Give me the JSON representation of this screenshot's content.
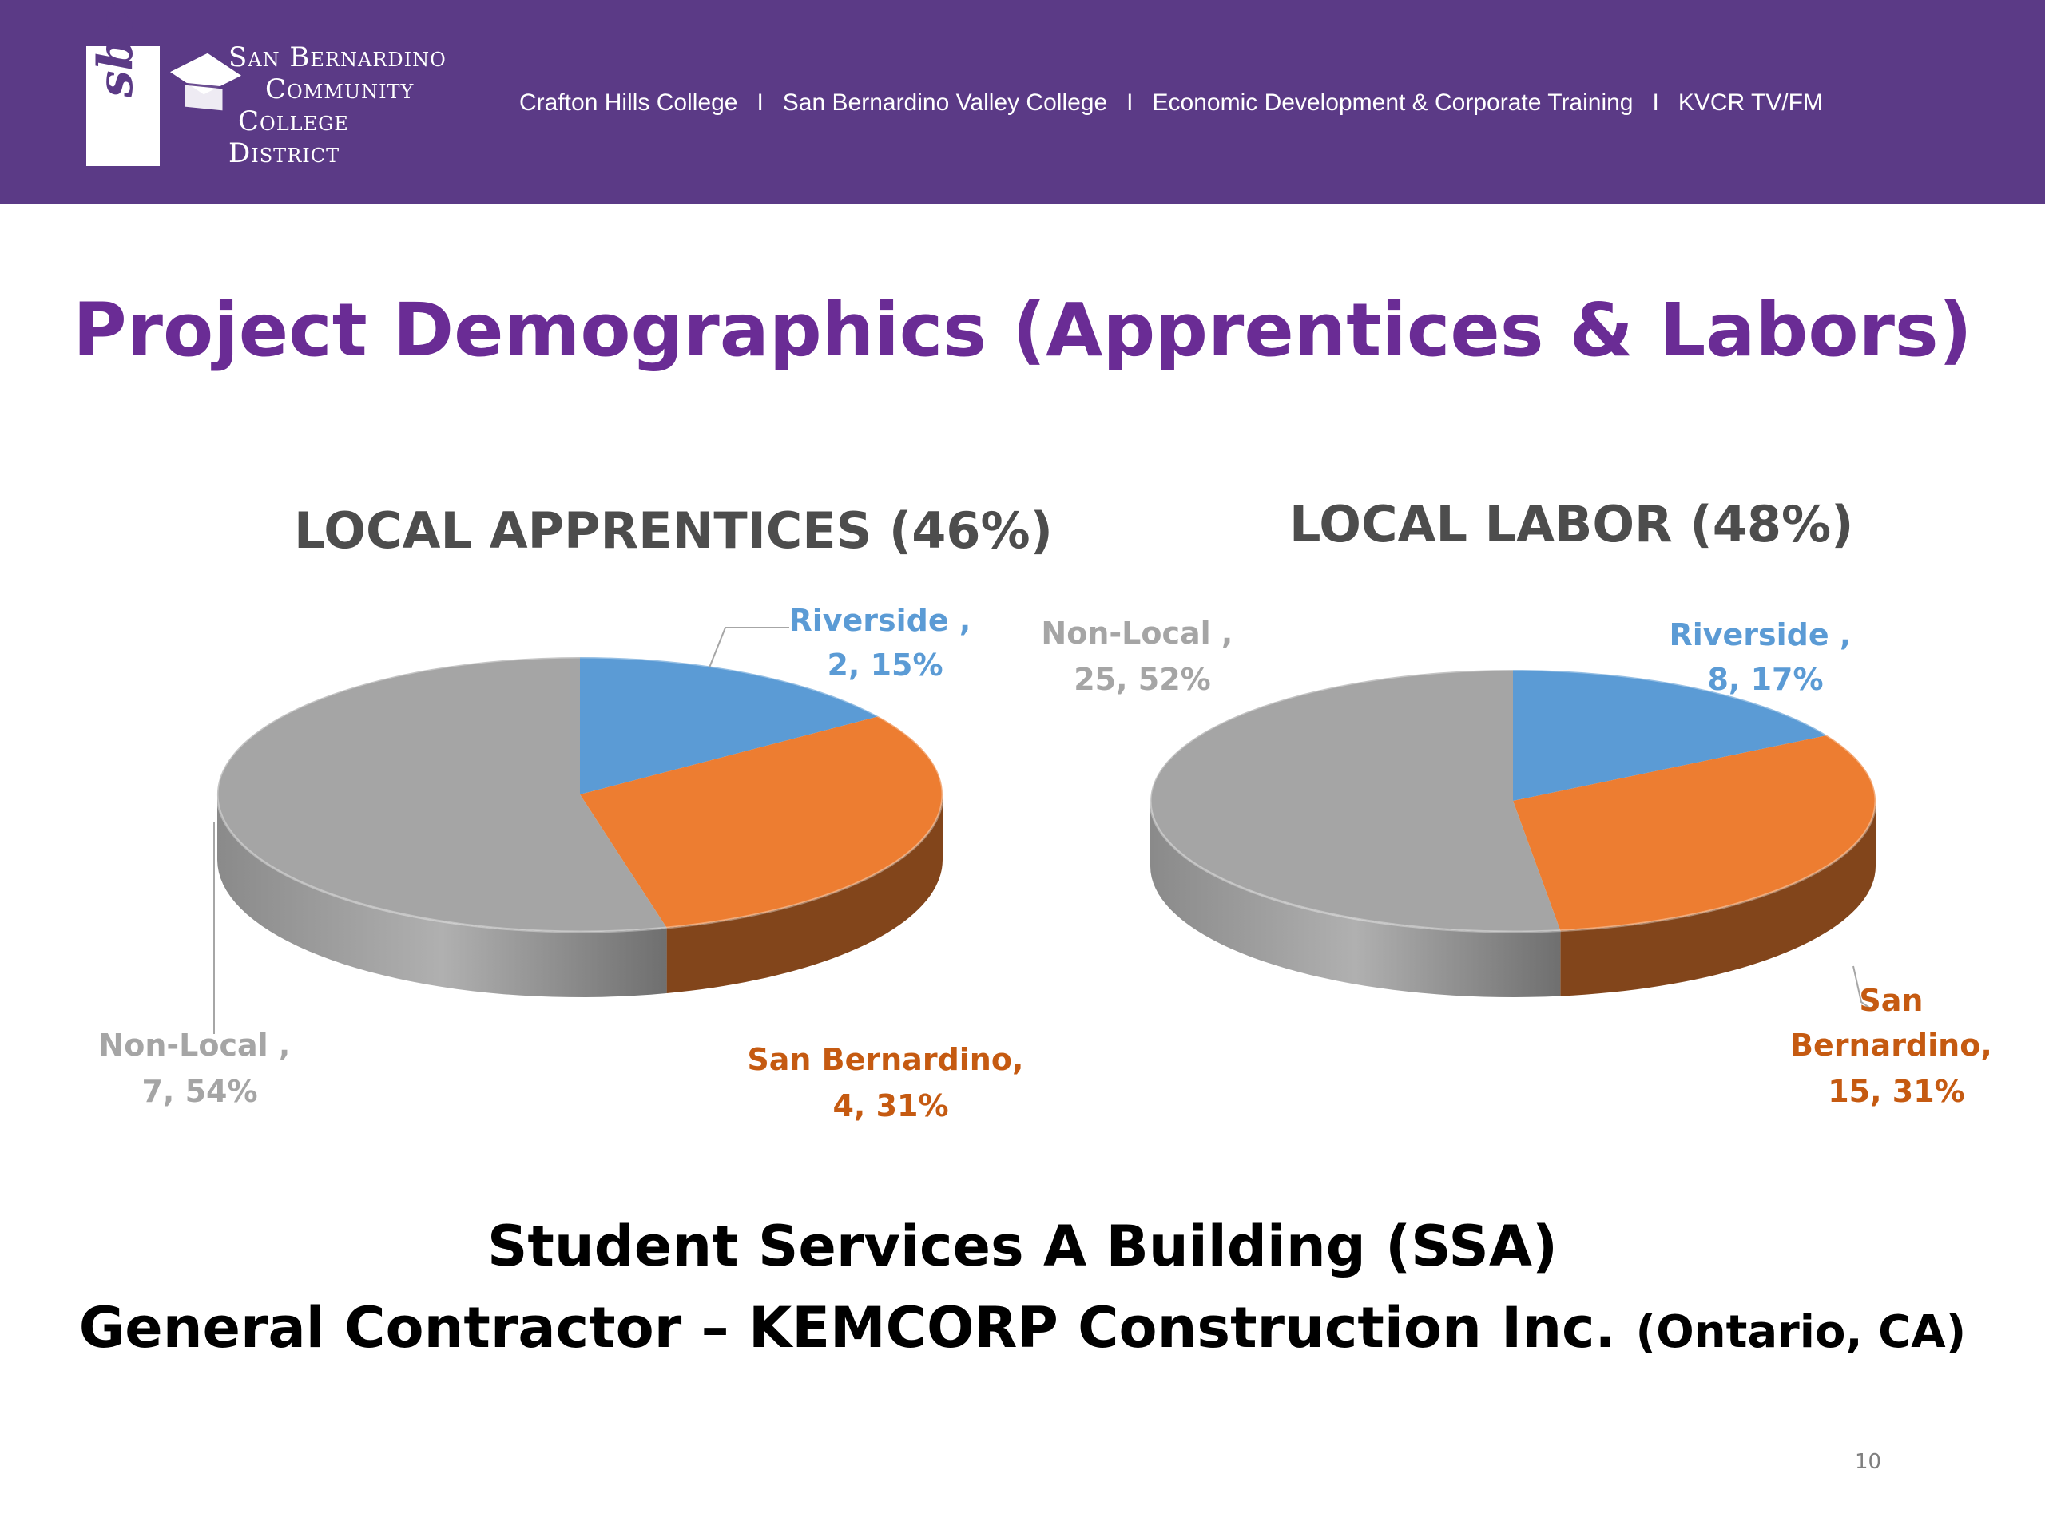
{
  "header": {
    "logo_text": "sbccd",
    "district_name": [
      "San Bernardino",
      "Community",
      "College",
      "District"
    ],
    "nav_links": [
      "Crafton Hills College",
      "San Bernardino Valley College",
      "Economic Development & Corporate Training",
      "KVCR TV/FM"
    ],
    "nav_separator": "I",
    "background_color": "#5b3a86"
  },
  "title": "Project Demographics (Apprentices & Labors)",
  "chart_data": [
    {
      "type": "pie",
      "title": "LOCAL APPRENTICES (46%)",
      "categories": [
        "Riverside",
        "San Bernardino",
        "Non-Local"
      ],
      "values": [
        2,
        4,
        7
      ],
      "percentages": [
        15,
        31,
        54
      ],
      "labels": [
        [
          "Riverside ,",
          "2, 15%"
        ],
        [
          "San Bernardino,",
          "4, 31%"
        ],
        [
          "Non-Local ,",
          "7, 54%"
        ]
      ],
      "colors": [
        "#5b9bd5",
        "#ed7d31",
        "#a5a5a5"
      ],
      "style": "3d"
    },
    {
      "type": "pie",
      "title": "LOCAL LABOR (48%)",
      "categories": [
        "Riverside",
        "San Bernardino",
        "Non-Local"
      ],
      "values": [
        8,
        15,
        25
      ],
      "percentages": [
        17,
        31,
        52
      ],
      "labels": [
        [
          "Riverside ,",
          "8, 17%"
        ],
        [
          "San",
          "Bernardino,",
          "15, 31%"
        ],
        [
          "Non-Local ,",
          "25, 52%"
        ]
      ],
      "colors": [
        "#5b9bd5",
        "#ed7d31",
        "#a5a5a5"
      ],
      "style": "3d"
    }
  ],
  "footer": {
    "line1": "Student Services A Building  (SSA)",
    "line2_main": "General Contractor – KEMCORP Construction Inc. ",
    "line2_small": "(Ontario, CA)"
  },
  "page_number": "10"
}
